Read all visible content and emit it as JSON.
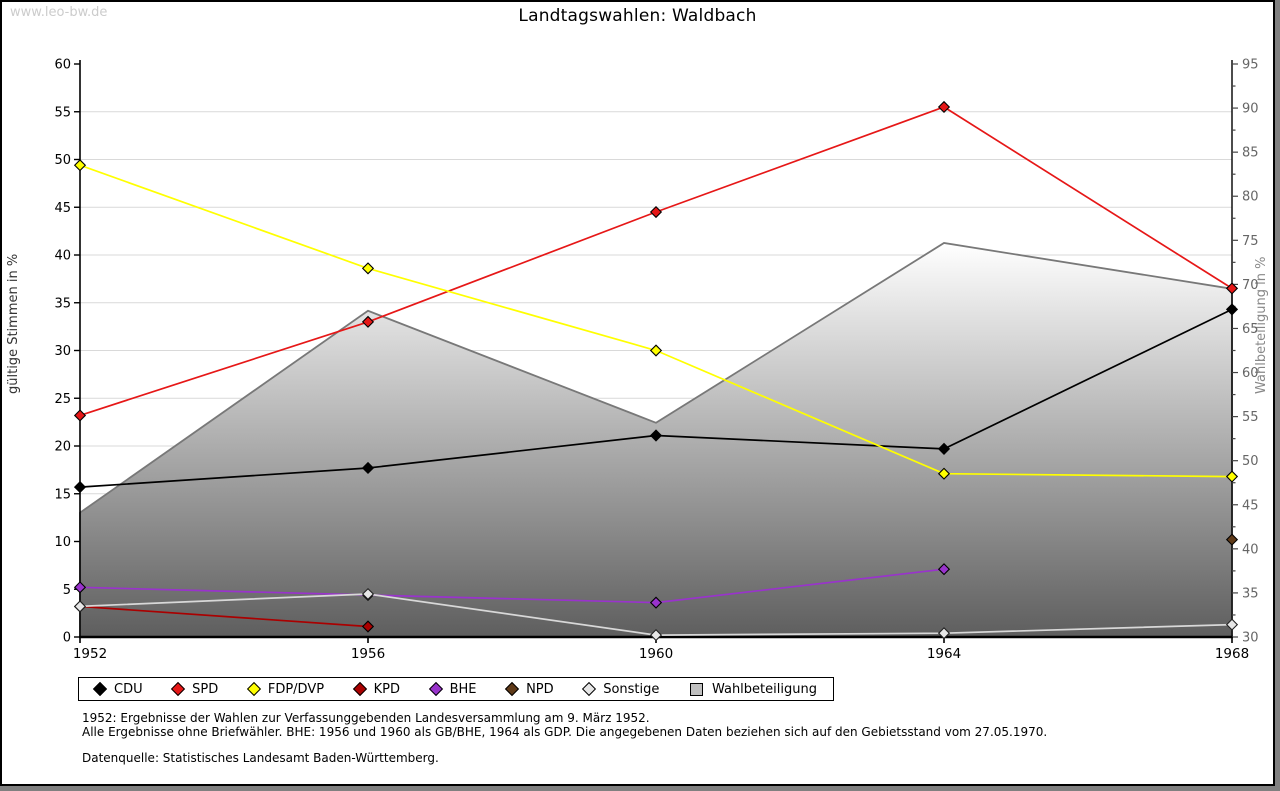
{
  "watermark": "www.leo-bw.de",
  "title": "Landtagswahlen: Waldbach",
  "left_axis": {
    "label": "gültige Stimmen in %",
    "min": 0,
    "max": 60,
    "step": 5
  },
  "right_axis": {
    "label": "Wahlbeteiligung in %",
    "min": 30,
    "max": 95,
    "step": 5,
    "minor_step": 2.5
  },
  "x_axis": {
    "tick_labels": [
      "1952",
      "1956",
      "1960",
      "1964",
      "1968"
    ]
  },
  "chart_data": {
    "type": "line",
    "title": "Landtagswahlen: Waldbach",
    "x": [
      1952,
      1956,
      1960,
      1964,
      1968
    ],
    "xlabel": "",
    "ylabel_left": "gültige Stimmen in %",
    "ylabel_right": "Wahlbeteiligung in %",
    "ylim_left": [
      0,
      60
    ],
    "ylim_right": [
      30,
      95
    ],
    "grid": "horizontal",
    "legend_position": "bottom",
    "series": [
      {
        "name": "CDU",
        "color": "#000000",
        "axis": "left",
        "kind": "line",
        "marker": "diamond",
        "values": [
          15.7,
          17.7,
          21.1,
          19.7,
          34.3
        ]
      },
      {
        "name": "SPD",
        "color": "#e61717",
        "axis": "left",
        "kind": "line",
        "marker": "diamond",
        "values": [
          23.2,
          33.0,
          44.5,
          55.5,
          36.5
        ]
      },
      {
        "name": "FDP/DVP",
        "color": "#ffff00",
        "axis": "left",
        "kind": "line",
        "marker": "diamond",
        "values": [
          49.4,
          38.6,
          30.0,
          17.1,
          16.8
        ]
      },
      {
        "name": "KPD",
        "color": "#aa0000",
        "axis": "left",
        "kind": "line",
        "marker": "diamond",
        "values": [
          3.2,
          1.1,
          null,
          null,
          null
        ]
      },
      {
        "name": "BHE",
        "color": "#9933cc",
        "axis": "left",
        "kind": "line",
        "marker": "diamond",
        "values": [
          5.2,
          4.4,
          3.6,
          7.1,
          null
        ]
      },
      {
        "name": "NPD",
        "color": "#5f3a18",
        "axis": "left",
        "kind": "line",
        "marker": "diamond",
        "values": [
          null,
          null,
          null,
          null,
          10.2
        ]
      },
      {
        "name": "Sonstige",
        "color": "#d8d8d8",
        "axis": "left",
        "kind": "line",
        "marker": "diamond",
        "marker_fill": "#e6e6e6",
        "values": [
          3.2,
          4.5,
          0.2,
          0.4,
          1.3
        ]
      },
      {
        "name": "Wahlbeteiligung",
        "color": "#787878",
        "axis": "right",
        "kind": "area",
        "marker": "square",
        "marker_fill": "#c0c0c0",
        "gradient_top": "#ffffff",
        "gradient_bottom": "#5e5e5e",
        "values": [
          44.1,
          67.0,
          54.3,
          74.7,
          69.5
        ]
      }
    ]
  },
  "footnotes": {
    "line1": "1952: Ergebnisse der Wahlen zur Verfassunggebenden Landesversammlung am 9. März 1952.",
    "line2": "Alle Ergebnisse ohne Briefwähler. BHE: 1956 und 1960 als GB/BHE, 1964 als GDP. Die angegebenen Daten beziehen sich auf den Gebietsstand vom 27.05.1970.",
    "line3": "Datenquelle: Statistisches Landesamt Baden-Württemberg."
  },
  "colors": {
    "gridline": "#d9d9d9",
    "axis": "#000000",
    "right_tick_text": "#666666",
    "page_shadow": "#808080"
  }
}
